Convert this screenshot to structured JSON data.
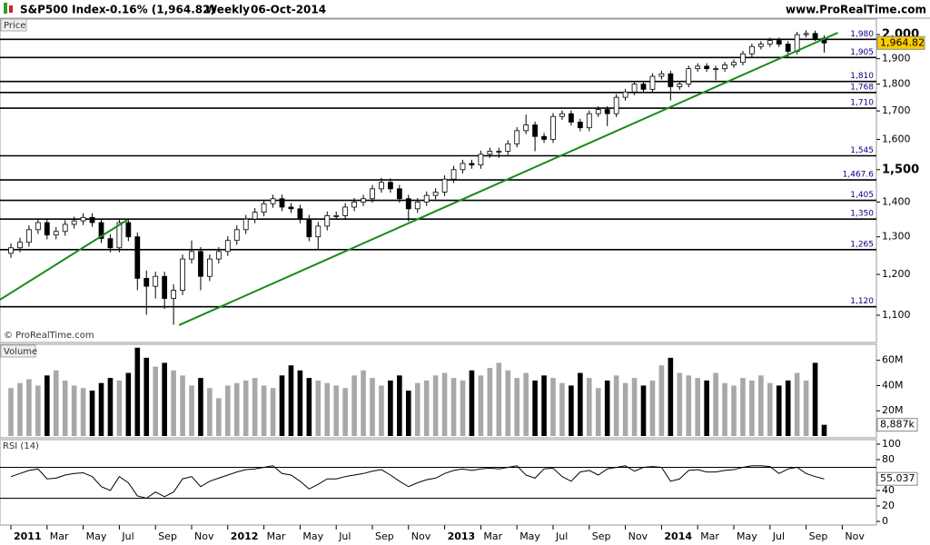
{
  "header": {
    "title": "S&P500 Index",
    "change": "-0.16% (1,964.82)",
    "period": "Weekly",
    "date": "06-Oct-2014",
    "site": "www.ProRealTime.com"
  },
  "chart_data": [
    {
      "type": "candlestick",
      "label": "Price",
      "watermark": "© ProRealTime.com",
      "categories": [
        "2011",
        null,
        null,
        null,
        "Mar",
        null,
        null,
        null,
        "May",
        null,
        null,
        null,
        "Jul",
        null,
        null,
        null,
        "Sep",
        null,
        null,
        null,
        "Nov",
        null,
        null,
        null,
        "2012",
        null,
        null,
        null,
        "Mar",
        null,
        null,
        null,
        "May",
        null,
        null,
        null,
        "Jul",
        null,
        null,
        null,
        "Sep",
        null,
        null,
        null,
        "Nov",
        null,
        null,
        null,
        "2013",
        null,
        null,
        null,
        "Mar",
        null,
        null,
        null,
        "May",
        null,
        null,
        null,
        "Jul",
        null,
        null,
        null,
        "Sep",
        null,
        null,
        null,
        "Nov",
        null,
        null,
        null,
        "2014",
        null,
        null,
        null,
        "Mar",
        null,
        null,
        null,
        "May",
        null,
        null,
        null,
        "Jul",
        null,
        null,
        null,
        "Sep",
        null,
        null,
        null,
        "Nov"
      ],
      "open": [
        1255,
        1270,
        1285,
        1320,
        1340,
        1305,
        1315,
        1335,
        1345,
        1355,
        1340,
        1295,
        1270,
        1340,
        1300,
        1190,
        1170,
        1195,
        1140,
        1160,
        1240,
        1260,
        1195,
        1240,
        1260,
        1290,
        1320,
        1350,
        1370,
        1395,
        1410,
        1385,
        1380,
        1350,
        1300,
        1330,
        1360,
        1360,
        1385,
        1400,
        1410,
        1440,
        1460,
        1440,
        1410,
        1380,
        1400,
        1420,
        1430,
        1470,
        1500,
        1520,
        1515,
        1550,
        1560,
        1560,
        1585,
        1630,
        1650,
        1610,
        1600,
        1680,
        1690,
        1660,
        1640,
        1690,
        1705,
        1690,
        1750,
        1770,
        1800,
        1780,
        1830,
        1840,
        1790,
        1800,
        1860,
        1870,
        1860,
        1860,
        1875,
        1885,
        1920,
        1950,
        1960,
        1975,
        1960,
        1930,
        2000,
        2005,
        1985,
        null,
        null
      ],
      "high": [
        1282,
        1297,
        1332,
        1352,
        1352,
        1327,
        1347,
        1357,
        1367,
        1367,
        1352,
        1307,
        1352,
        1352,
        1312,
        1210,
        1207,
        1207,
        1175,
        1252,
        1290,
        1272,
        1252,
        1272,
        1302,
        1332,
        1362,
        1382,
        1407,
        1422,
        1422,
        1397,
        1392,
        1362,
        1342,
        1372,
        1372,
        1397,
        1412,
        1422,
        1452,
        1474,
        1472,
        1452,
        1422,
        1412,
        1432,
        1442,
        1482,
        1512,
        1532,
        1532,
        1562,
        1572,
        1572,
        1597,
        1642,
        1687,
        1662,
        1622,
        1692,
        1702,
        1702,
        1672,
        1702,
        1717,
        1717,
        1762,
        1782,
        1812,
        1812,
        1842,
        1852,
        1852,
        1812,
        1872,
        1882,
        1882,
        1872,
        1887,
        1897,
        1932,
        1962,
        1972,
        1987,
        1987,
        1972,
        2012,
        2019,
        2017,
        1997,
        null,
        null
      ],
      "low": [
        1243,
        1258,
        1273,
        1308,
        1293,
        1293,
        1303,
        1323,
        1333,
        1328,
        1283,
        1258,
        1258,
        1288,
        1160,
        1101,
        1140,
        1115,
        1078,
        1148,
        1228,
        1160,
        1183,
        1228,
        1248,
        1278,
        1308,
        1338,
        1358,
        1383,
        1373,
        1368,
        1338,
        1288,
        1266,
        1318,
        1348,
        1348,
        1373,
        1388,
        1398,
        1428,
        1428,
        1398,
        1343,
        1368,
        1388,
        1408,
        1418,
        1458,
        1488,
        1503,
        1503,
        1538,
        1538,
        1548,
        1573,
        1618,
        1560,
        1588,
        1588,
        1668,
        1648,
        1628,
        1628,
        1678,
        1646,
        1678,
        1738,
        1758,
        1768,
        1768,
        1818,
        1738,
        1778,
        1788,
        1848,
        1848,
        1815,
        1848,
        1863,
        1873,
        1908,
        1938,
        1948,
        1948,
        1905,
        1918,
        1988,
        1973,
        1925,
        null,
        null
      ],
      "close": [
        1270,
        1285,
        1320,
        1340,
        1305,
        1315,
        1335,
        1345,
        1355,
        1340,
        1295,
        1270,
        1340,
        1300,
        1190,
        1170,
        1195,
        1140,
        1160,
        1240,
        1260,
        1195,
        1240,
        1260,
        1290,
        1320,
        1350,
        1370,
        1395,
        1410,
        1385,
        1380,
        1350,
        1300,
        1330,
        1360,
        1360,
        1385,
        1400,
        1410,
        1440,
        1460,
        1440,
        1410,
        1380,
        1400,
        1420,
        1430,
        1470,
        1500,
        1520,
        1515,
        1550,
        1560,
        1560,
        1585,
        1630,
        1650,
        1610,
        1600,
        1680,
        1690,
        1660,
        1640,
        1690,
        1705,
        1690,
        1750,
        1770,
        1800,
        1780,
        1830,
        1840,
        1790,
        1800,
        1860,
        1870,
        1860,
        1860,
        1875,
        1885,
        1920,
        1950,
        1960,
        1975,
        1960,
        1930,
        2000,
        2005,
        1985,
        1964.82,
        null,
        null
      ],
      "last_label": "1,964.82",
      "last_label_color": "#ffcc00",
      "up_color": "#ffffff",
      "down_color": "#000000",
      "log_scale": true,
      "ylim": [
        1040,
        2020
      ],
      "yticks": [
        {
          "value": 1100,
          "label": "1,100"
        },
        {
          "value": 1200,
          "label": "1,200"
        },
        {
          "value": 1300,
          "label": "1,300"
        },
        {
          "value": 1400,
          "label": "1,400"
        },
        {
          "value": 1500,
          "label": "1,500",
          "major": true
        },
        {
          "value": 1600,
          "label": "1,600"
        },
        {
          "value": 1700,
          "label": "1,700"
        },
        {
          "value": 1800,
          "label": "1,800"
        },
        {
          "value": 1900,
          "label": "1,900"
        },
        {
          "value": 2000,
          "label": "2,000",
          "major": true
        }
      ],
      "levels": [
        {
          "value": 1980,
          "label": "1,980"
        },
        {
          "value": 1905,
          "label": "1,905"
        },
        {
          "value": 1810,
          "label": "1,810"
        },
        {
          "value": 1768,
          "label": "1,768"
        },
        {
          "value": 1710,
          "label": "1,710"
        },
        {
          "value": 1545,
          "label": "1,545"
        },
        {
          "value": 1467.6,
          "label": "1,467.6"
        },
        {
          "value": 1405,
          "label": "1,405"
        },
        {
          "value": 1350,
          "label": "1,350"
        },
        {
          "value": 1265,
          "label": "1,265"
        },
        {
          "value": 1120,
          "label": "1,120"
        }
      ],
      "trendlines": [
        {
          "color": "#1a8a1a",
          "x": [
            -1.2,
            12.9
          ],
          "y": [
            1137,
            1348
          ]
        },
        {
          "color": "#1a8a1a",
          "x": [
            18.6,
            91.5
          ],
          "y": [
            1077,
            2008
          ]
        }
      ]
    },
    {
      "type": "bar",
      "label": "Volume",
      "values": [
        38000000,
        42000000,
        45000000,
        40000000,
        48000000,
        52000000,
        44000000,
        40000000,
        38000000,
        36000000,
        42000000,
        46000000,
        44000000,
        50000000,
        70000000,
        62000000,
        55000000,
        58000000,
        52000000,
        48000000,
        40000000,
        46000000,
        38000000,
        30000000,
        40000000,
        42000000,
        44000000,
        46000000,
        40000000,
        38000000,
        48000000,
        56000000,
        52000000,
        46000000,
        44000000,
        42000000,
        40000000,
        38000000,
        48000000,
        52000000,
        46000000,
        40000000,
        44000000,
        48000000,
        36000000,
        42000000,
        44000000,
        48000000,
        50000000,
        46000000,
        44000000,
        52000000,
        48000000,
        54000000,
        58000000,
        52000000,
        46000000,
        50000000,
        44000000,
        48000000,
        46000000,
        42000000,
        40000000,
        50000000,
        46000000,
        38000000,
        44000000,
        48000000,
        42000000,
        46000000,
        40000000,
        44000000,
        56000000,
        62000000,
        50000000,
        48000000,
        46000000,
        44000000,
        50000000,
        42000000,
        40000000,
        46000000,
        44000000,
        48000000,
        42000000,
        40000000,
        44000000,
        50000000,
        44000000,
        58000000,
        8887000
      ],
      "last_label": "8,887k",
      "up_color": "#a8a8a8",
      "down_color": "#000000",
      "ylim": [
        0,
        72000000
      ],
      "yticks": [
        {
          "value": 20000000,
          "label": "20M"
        },
        {
          "value": 40000000,
          "label": "40M"
        },
        {
          "value": 60000000,
          "label": "60M"
        }
      ]
    },
    {
      "type": "line",
      "label": "RSI (14)",
      "values": [
        58,
        62,
        66,
        68,
        55,
        56,
        60,
        62,
        63,
        58,
        45,
        40,
        58,
        50,
        33,
        30,
        38,
        32,
        38,
        55,
        58,
        45,
        52,
        56,
        60,
        64,
        67,
        68,
        70,
        72,
        62,
        60,
        52,
        42,
        48,
        55,
        55,
        58,
        60,
        62,
        65,
        67,
        60,
        52,
        45,
        50,
        54,
        56,
        62,
        66,
        68,
        66,
        68,
        69,
        68,
        70,
        72,
        60,
        56,
        68,
        69,
        58,
        52,
        64,
        66,
        60,
        68,
        70,
        72,
        65,
        70,
        71,
        70,
        52,
        55,
        66,
        67,
        64,
        64,
        66,
        67,
        70,
        72,
        72,
        71,
        62,
        68,
        70,
        62,
        58,
        55.037
      ],
      "color": "#000000",
      "levels": [
        70,
        30
      ],
      "last_label": "55.037",
      "ylim": [
        0,
        100
      ],
      "yticks": [
        0,
        20,
        40,
        80,
        100
      ]
    }
  ]
}
